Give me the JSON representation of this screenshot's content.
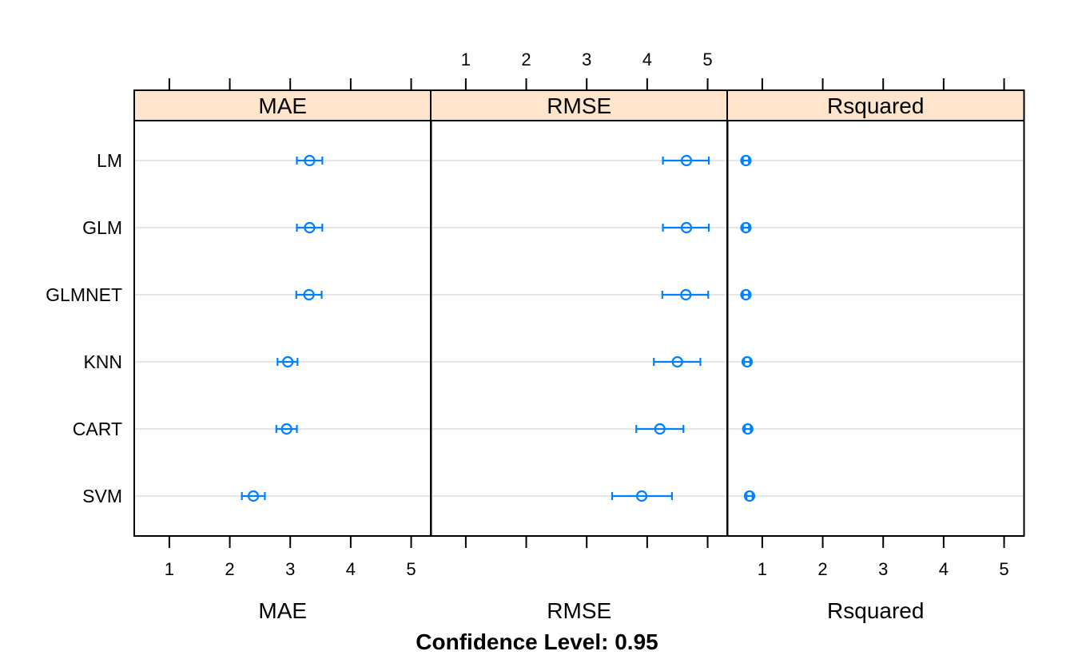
{
  "chart_data": {
    "type": "dotplot",
    "title": "",
    "caption": "Confidence Level: 0.95",
    "categories": [
      "LM",
      "GLM",
      "GLMNET",
      "KNN",
      "CART",
      "SVM"
    ],
    "xlim": [
      0.42,
      5.33
    ],
    "ticks": [
      1,
      2,
      3,
      4,
      5
    ],
    "grid": true,
    "colors": {
      "point": "#0080ff",
      "strip": "#ffe5cc",
      "grid": "#e6e6e6"
    },
    "panels": [
      {
        "name": "MAE",
        "xlabel": "MAE",
        "estimate": [
          3.32,
          3.32,
          3.31,
          2.96,
          2.94,
          2.39
        ],
        "lower": [
          3.11,
          3.11,
          3.1,
          2.79,
          2.77,
          2.2
        ],
        "upper": [
          3.53,
          3.53,
          3.52,
          3.12,
          3.11,
          2.58
        ]
      },
      {
        "name": "RMSE",
        "xlabel": "RMSE",
        "estimate": [
          4.65,
          4.65,
          4.64,
          4.5,
          4.21,
          3.91
        ],
        "lower": [
          4.26,
          4.26,
          4.25,
          4.11,
          3.82,
          3.42
        ],
        "upper": [
          5.02,
          5.02,
          5.01,
          4.88,
          4.6,
          4.41
        ]
      },
      {
        "name": "Rsquared",
        "xlabel": "Rsquared",
        "estimate": [
          0.73,
          0.73,
          0.73,
          0.75,
          0.76,
          0.79
        ],
        "lower": [
          0.68,
          0.68,
          0.68,
          0.7,
          0.71,
          0.74
        ],
        "upper": [
          0.78,
          0.78,
          0.78,
          0.8,
          0.81,
          0.84
        ]
      }
    ]
  }
}
